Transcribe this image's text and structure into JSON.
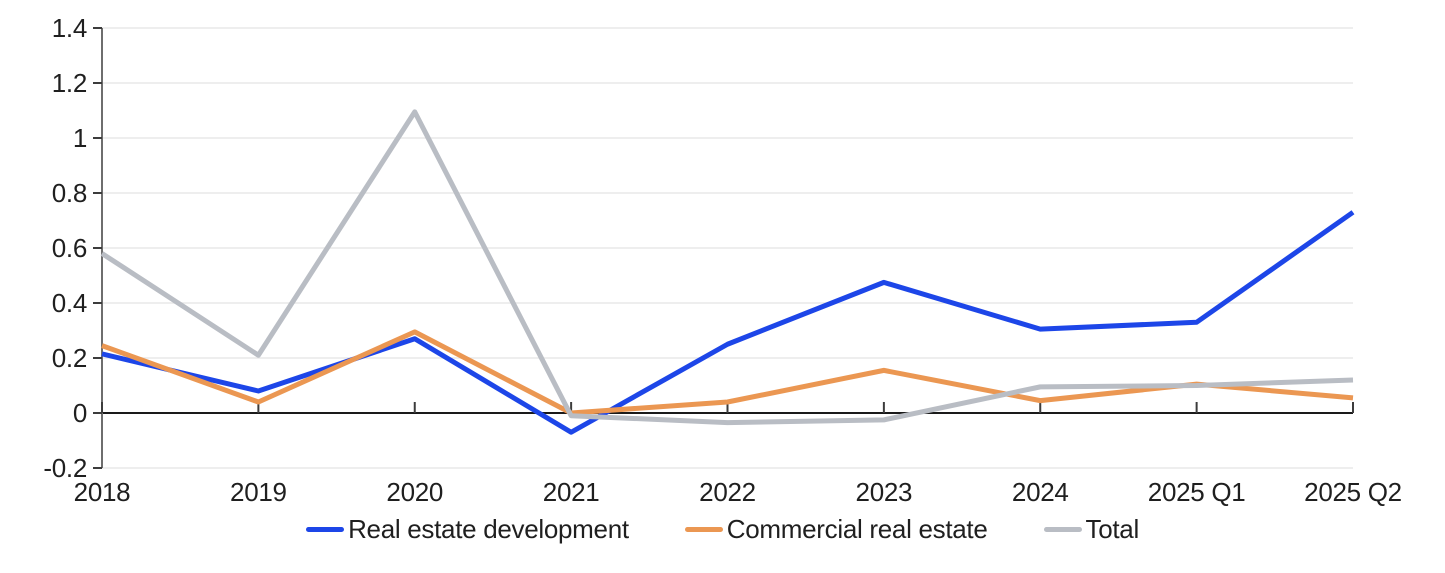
{
  "chart_data": {
    "type": "line",
    "title": "",
    "xlabel": "",
    "ylabel": "",
    "categories": [
      "2018",
      "2019",
      "2020",
      "2021",
      "2022",
      "2023",
      "2024",
      "2025 Q1",
      "2025 Q2"
    ],
    "series": [
      {
        "name": "Real estate development",
        "color": "#1d46e8",
        "values": [
          0.215,
          0.08,
          0.27,
          -0.07,
          0.25,
          0.475,
          0.305,
          0.33,
          0.73
        ]
      },
      {
        "name": "Commercial real estate",
        "color": "#eb9752",
        "values": [
          0.245,
          0.04,
          0.295,
          0.0,
          0.04,
          0.155,
          0.045,
          0.105,
          0.055
        ]
      },
      {
        "name": "Total",
        "color": "#b9bdc4",
        "values": [
          0.58,
          0.21,
          1.095,
          -0.01,
          -0.035,
          -0.025,
          0.095,
          0.1,
          0.12
        ]
      }
    ],
    "ylim": [
      -0.2,
      1.4
    ],
    "yticks": [
      -0.2,
      0,
      0.2,
      0.4,
      0.6,
      0.8,
      1,
      1.2,
      1.4
    ],
    "ytick_labels": [
      "-0.2",
      "0",
      "0.2",
      "0.4",
      "0.6",
      "0.8",
      "1",
      "1.2",
      "1.4"
    ],
    "grid": true,
    "legend_position": "bottom-center",
    "line_width": 5
  },
  "style": {
    "grid_color": "#e8e8e8",
    "zero_axis_color": "#1a1a1a",
    "spine_color": "#6e6e6e",
    "tick_color": "#3c3c3c",
    "text_color": "#1f1f1f",
    "background": "#ffffff"
  }
}
